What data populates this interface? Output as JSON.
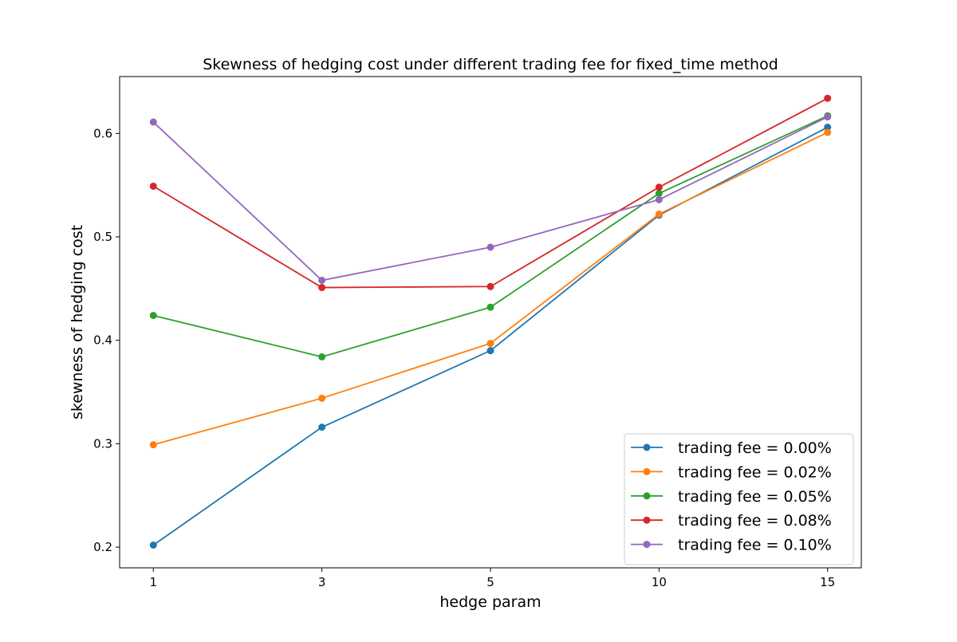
{
  "chart_data": {
    "type": "line",
    "title": "Skewness of hedging cost under different trading fee for fixed_time method",
    "xlabel": "hedge param",
    "ylabel": "skewness of hedging cost",
    "categories": [
      "1",
      "3",
      "5",
      "10",
      "15"
    ],
    "yticks": [
      "0.2",
      "0.3",
      "0.4",
      "0.5",
      "0.6"
    ],
    "ylim": [
      0.18,
      0.655
    ],
    "grid": false,
    "legend_position": "bottom-right",
    "series": [
      {
        "name": "trading fee = 0.00%",
        "color": "#1f77b4",
        "values": [
          0.202,
          0.316,
          0.39,
          0.521,
          0.606
        ]
      },
      {
        "name": "trading fee = 0.02%",
        "color": "#ff7f0e",
        "values": [
          0.299,
          0.344,
          0.397,
          0.522,
          0.601
        ]
      },
      {
        "name": "trading fee = 0.05%",
        "color": "#2ca02c",
        "values": [
          0.424,
          0.384,
          0.432,
          0.542,
          0.617
        ]
      },
      {
        "name": "trading fee = 0.08%",
        "color": "#d62728",
        "values": [
          0.549,
          0.451,
          0.452,
          0.548,
          0.634
        ]
      },
      {
        "name": "trading fee = 0.10%",
        "color": "#9467bd",
        "values": [
          0.611,
          0.458,
          0.49,
          0.536,
          0.616
        ]
      }
    ]
  }
}
